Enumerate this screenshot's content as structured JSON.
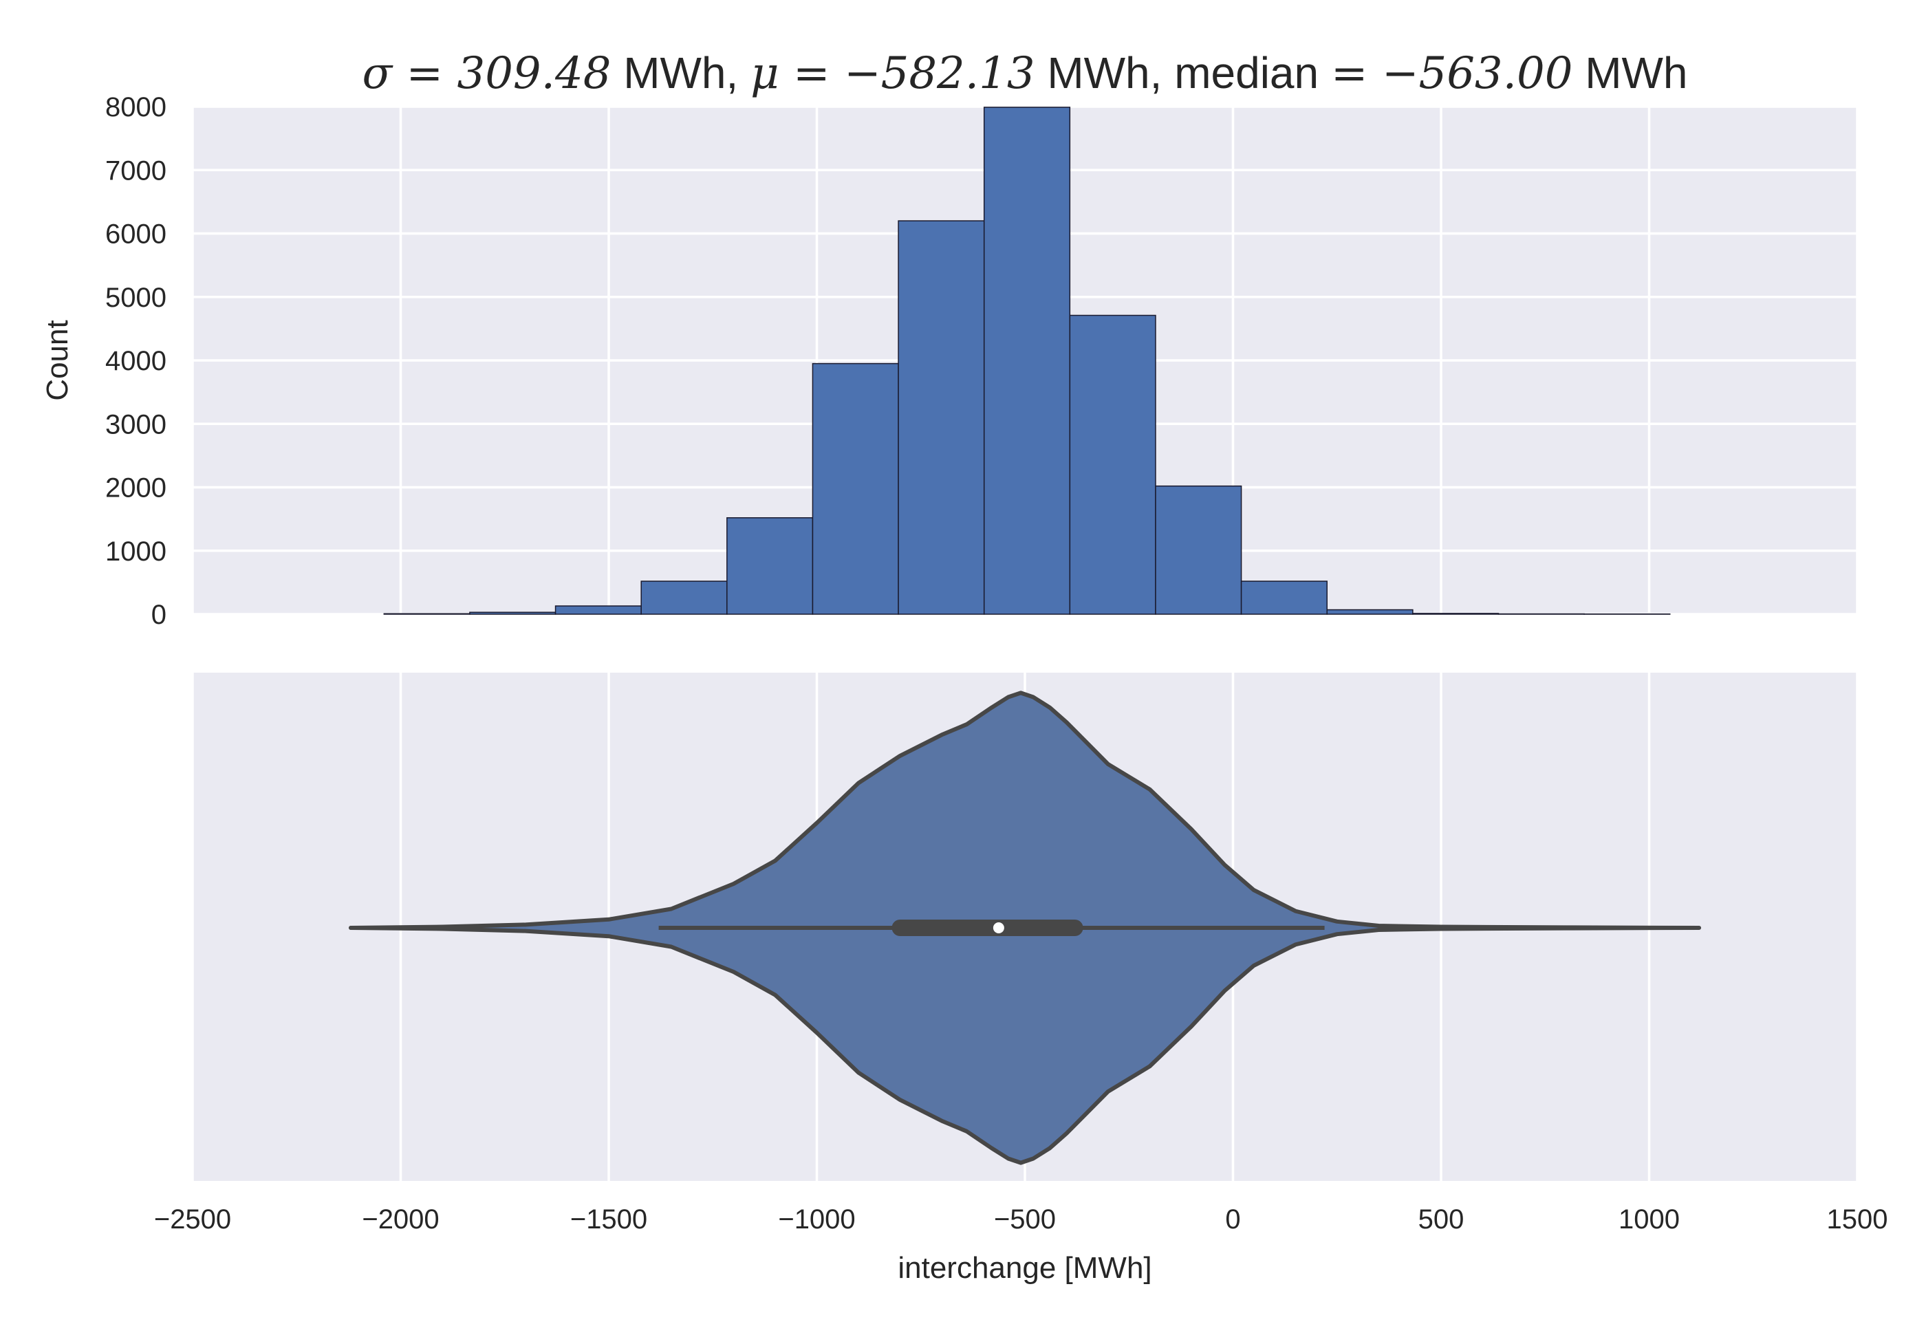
{
  "title": {
    "parts": [
      {
        "text": "σ = 309.48",
        "style": "math"
      },
      {
        "text": " MWh, ",
        "style": "plain"
      },
      {
        "text": "μ = −582.13",
        "style": "math"
      },
      {
        "text": " MWh, median ",
        "style": "plain"
      },
      {
        "text": "= −563.00",
        "style": "math"
      },
      {
        "text": " MWh",
        "style": "plain"
      }
    ]
  },
  "colors": {
    "background": "#EAEAF2",
    "grid": "#FFFFFF",
    "bar_fill": "#4C72B0",
    "bar_edge": "#1a1a2e",
    "violin_fill": "#5975A4",
    "violin_edge": "#474747",
    "box": "#474747",
    "median_dot": "#FFFFFF"
  },
  "chart_data": [
    {
      "type": "bar",
      "subtype": "histogram",
      "xlim": [
        -2500,
        1500
      ],
      "ylim": [
        0,
        8000
      ],
      "xticks": [
        -2500,
        -2000,
        -1500,
        -1000,
        -500,
        0,
        500,
        1000,
        1500
      ],
      "yticks": [
        0,
        1000,
        2000,
        3000,
        4000,
        5000,
        6000,
        7000,
        8000
      ],
      "show_xticklabels": false,
      "ylabel": "Count",
      "grid": true,
      "bin_edges": [
        -2040,
        -1834,
        -1628,
        -1422,
        -1216,
        -1010,
        -804,
        -598,
        -392,
        -186,
        20,
        226,
        432,
        638,
        844,
        1050
      ],
      "values": [
        8,
        30,
        130,
        520,
        1520,
        3950,
        6200,
        7990,
        4710,
        2020,
        520,
        70,
        12,
        5,
        3
      ]
    },
    {
      "type": "violin",
      "xlim": [
        -2500,
        1500
      ],
      "xticks": [
        -2500,
        -2000,
        -1500,
        -1000,
        -500,
        0,
        500,
        1000,
        1500
      ],
      "xlabel": "interchange [MWh]",
      "grid": true,
      "whisker_range": [
        -2120,
        1120
      ],
      "inner_whisker": [
        -1380,
        220
      ],
      "quartiles": [
        -800,
        -380
      ],
      "median": -563,
      "density_profile": [
        {
          "x": -2120,
          "w": 0.0
        },
        {
          "x": -1900,
          "w": 0.005
        },
        {
          "x": -1700,
          "w": 0.015
        },
        {
          "x": -1500,
          "w": 0.04
        },
        {
          "x": -1350,
          "w": 0.09
        },
        {
          "x": -1200,
          "w": 0.21
        },
        {
          "x": -1100,
          "w": 0.32
        },
        {
          "x": -1000,
          "w": 0.5
        },
        {
          "x": -900,
          "w": 0.69
        },
        {
          "x": -800,
          "w": 0.82
        },
        {
          "x": -700,
          "w": 0.92
        },
        {
          "x": -640,
          "w": 0.97
        },
        {
          "x": -580,
          "w": 1.05
        },
        {
          "x": -540,
          "w": 1.1
        },
        {
          "x": -510,
          "w": 1.12
        },
        {
          "x": -480,
          "w": 1.1
        },
        {
          "x": -440,
          "w": 1.05
        },
        {
          "x": -400,
          "w": 0.98
        },
        {
          "x": -350,
          "w": 0.88
        },
        {
          "x": -300,
          "w": 0.78
        },
        {
          "x": -200,
          "w": 0.66
        },
        {
          "x": -100,
          "w": 0.47
        },
        {
          "x": -20,
          "w": 0.3
        },
        {
          "x": 50,
          "w": 0.18
        },
        {
          "x": 150,
          "w": 0.08
        },
        {
          "x": 250,
          "w": 0.03
        },
        {
          "x": 350,
          "w": 0.01
        },
        {
          "x": 500,
          "w": 0.005
        },
        {
          "x": 800,
          "w": 0.002
        },
        {
          "x": 1120,
          "w": 0.0
        }
      ]
    }
  ]
}
